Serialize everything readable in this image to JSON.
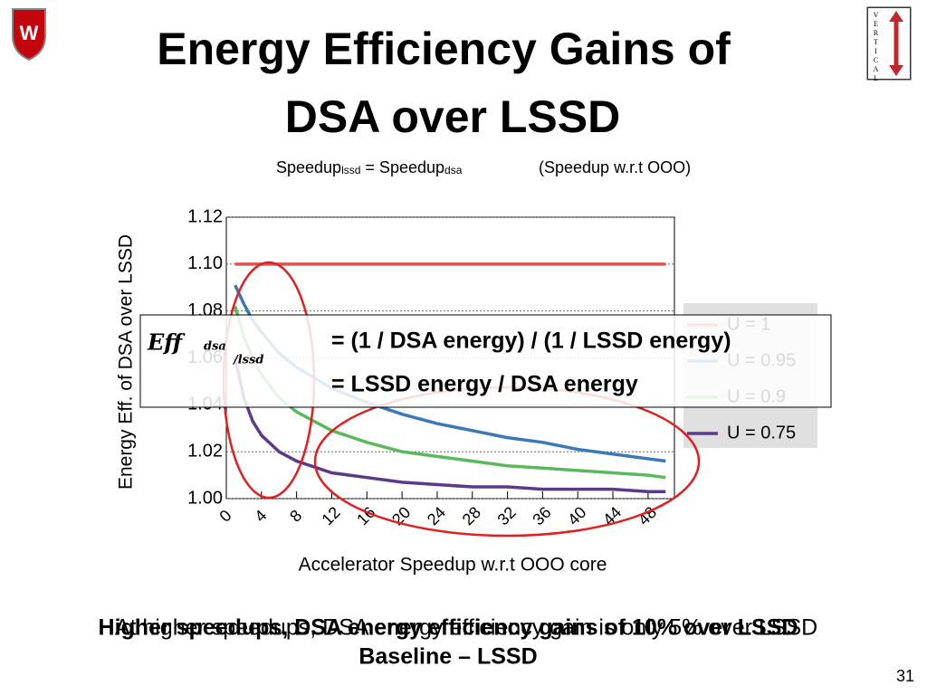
{
  "title_lines": [
    "Energy Efficiency Gains of",
    "DSA over LSSD"
  ],
  "subtitle_parts": [
    "Speedup",
    "lssd",
    " = Speedup",
    "dsa",
    "(Speedup w.r.t OOO)"
  ],
  "formula": {
    "lhs": "Eff",
    "lhs_sub": "dsa",
    "lhs_sub2": "/lssd",
    "line1": "=  (1 / DSA energy) / (1 / LSSD energy)",
    "line2": "=  LSSD energy / DSA energy"
  },
  "bottom_notes": [
    "At higher speedups, DSA energy efficiency gain is only 5% over LSSD",
    "Higher speedups, DSA energy efficiency gains of 10% over LSSD",
    "Baseline – LSSD"
  ],
  "logo_text": "VERTICAL",
  "page_number": "31",
  "chart_data": {
    "type": "line",
    "x_label": "Accelerator Speedup w.r.t OOO core",
    "y_label": "Energy Eff. of DSA over LSSD",
    "x": [
      1,
      2,
      3,
      4,
      6,
      8,
      12,
      16,
      20,
      24,
      28,
      32,
      36,
      40,
      44,
      48,
      50
    ],
    "series": [
      {
        "name": "U = 1",
        "color": "#d9534f",
        "values": [
          1.1,
          1.1,
          1.1,
          1.1,
          1.1,
          1.1,
          1.1,
          1.1,
          1.1,
          1.1,
          1.1,
          1.1,
          1.1,
          1.1,
          1.1,
          1.1,
          1.1
        ]
      },
      {
        "name": "U = 0.95",
        "color": "#3a78b8",
        "values": [
          1.091,
          1.083,
          1.076,
          1.071,
          1.062,
          1.056,
          1.047,
          1.041,
          1.036,
          1.032,
          1.029,
          1.026,
          1.024,
          1.021,
          1.019,
          1.017,
          1.016
        ]
      },
      {
        "name": "U = 0.9",
        "color": "#5cb85c",
        "values": [
          1.082,
          1.069,
          1.06,
          1.053,
          1.043,
          1.037,
          1.029,
          1.024,
          1.02,
          1.018,
          1.016,
          1.014,
          1.013,
          1.012,
          1.011,
          1.01,
          1.009
        ]
      },
      {
        "name": "U = 0.75",
        "color": "#5b3a8c",
        "values": [
          1.06,
          1.043,
          1.033,
          1.027,
          1.02,
          1.016,
          1.011,
          1.009,
          1.007,
          1.006,
          1.005,
          1.005,
          1.004,
          1.004,
          1.004,
          1.003,
          1.003
        ]
      }
    ],
    "xlim": [
      0,
      51
    ],
    "xticks": [
      0,
      4,
      8,
      12,
      16,
      20,
      24,
      28,
      32,
      36,
      40,
      44,
      48
    ],
    "ylim": [
      1.0,
      1.12
    ],
    "yticks": [
      {
        "value": 1.0,
        "label": "1.00"
      },
      1.02,
      1.04,
      1.06,
      1.08,
      {
        "value": 1.1,
        "label": "1.10"
      },
      1.12
    ],
    "grid": true,
    "legend": "right"
  }
}
